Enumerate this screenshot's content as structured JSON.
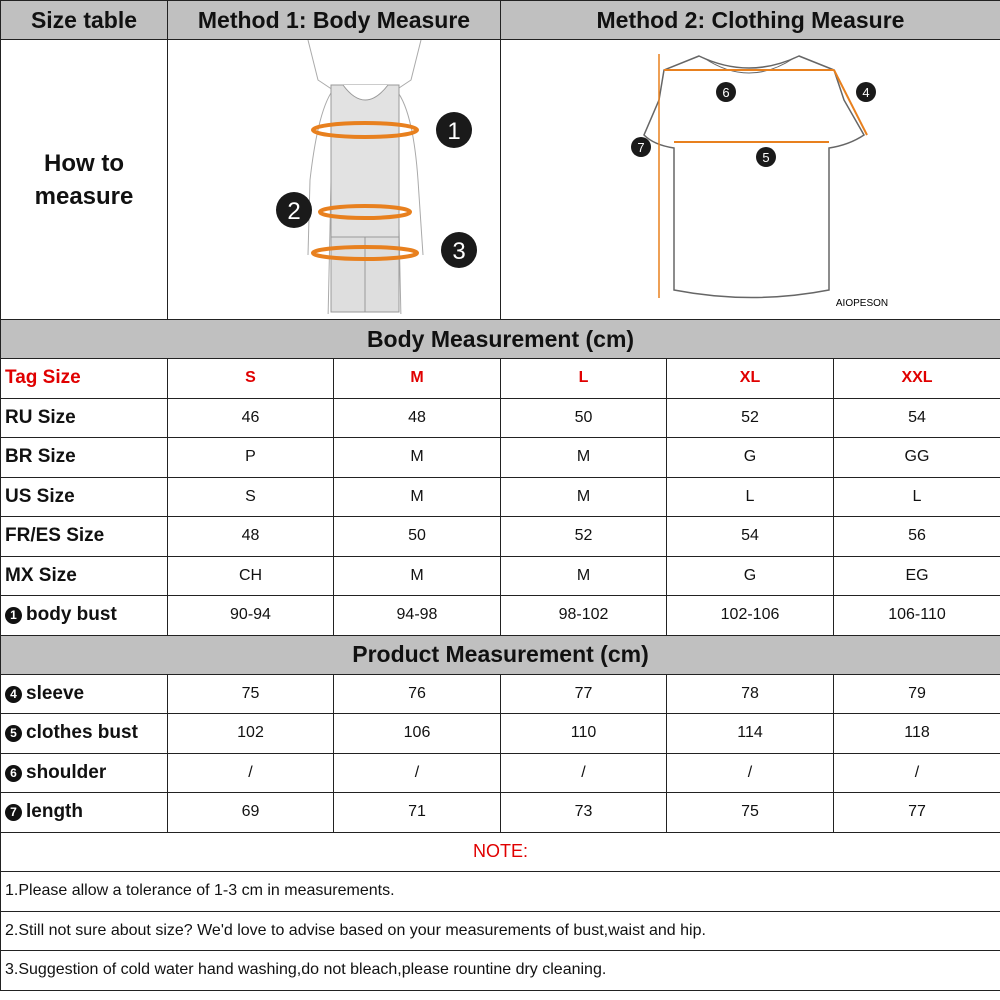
{
  "header": {
    "size_table": "Size table",
    "method1": "Method 1: Body  Measure",
    "method2": "Method 2: Clothing Measure"
  },
  "how_to": {
    "line1": "How to",
    "line2": "measure"
  },
  "body_figure": {
    "markers": [
      "1",
      "2",
      "3"
    ]
  },
  "shirt_figure": {
    "markers": [
      "4",
      "5",
      "6",
      "7"
    ],
    "brand": "AIOPESON"
  },
  "accent_color": "#e8801e",
  "body_section": "Body Measurement (cm)",
  "tag_row": {
    "label": "Tag Size",
    "sizes": [
      "S",
      "M",
      "L",
      "XL",
      "XXL"
    ]
  },
  "body_rows": [
    {
      "label": "RU Size",
      "values": [
        "46",
        "48",
        "50",
        "52",
        "54"
      ]
    },
    {
      "label": "BR Size",
      "values": [
        "P",
        "M",
        "M",
        "G",
        "GG"
      ]
    },
    {
      "label": "US Size",
      "values": [
        "S",
        "M",
        "M",
        "L",
        "L"
      ]
    },
    {
      "label": "FR/ES Size",
      "values": [
        "48",
        "50",
        "52",
        "54",
        "56"
      ]
    },
    {
      "label": "MX Size",
      "values": [
        "CH",
        "M",
        "M",
        "G",
        "EG"
      ]
    },
    {
      "marker": "1",
      "label": "body bust",
      "values": [
        "90-94",
        "94-98",
        "98-102",
        "102-106",
        "106-110"
      ]
    }
  ],
  "product_section": "Product Measurement (cm)",
  "product_rows": [
    {
      "marker": "4",
      "label": "sleeve",
      "values": [
        "75",
        "76",
        "77",
        "78",
        "79"
      ]
    },
    {
      "marker": "5",
      "label": "clothes bust",
      "values": [
        "102",
        "106",
        "110",
        "114",
        "118"
      ]
    },
    {
      "marker": "6",
      "label": "shoulder",
      "values": [
        "/",
        "/",
        "/",
        "/",
        "/"
      ]
    },
    {
      "marker": "7",
      "label": "length",
      "values": [
        "69",
        "71",
        "73",
        "75",
        "77"
      ]
    }
  ],
  "note": {
    "title": "NOTE:",
    "lines": [
      "1.Please allow a tolerance of 1-3 cm in measurements.",
      "2.Still not sure about size? We'd love to advise based on your measurements of bust,waist and hip.",
      "3.Suggestion of cold water hand washing,do not bleach,please rountine dry cleaning."
    ]
  }
}
